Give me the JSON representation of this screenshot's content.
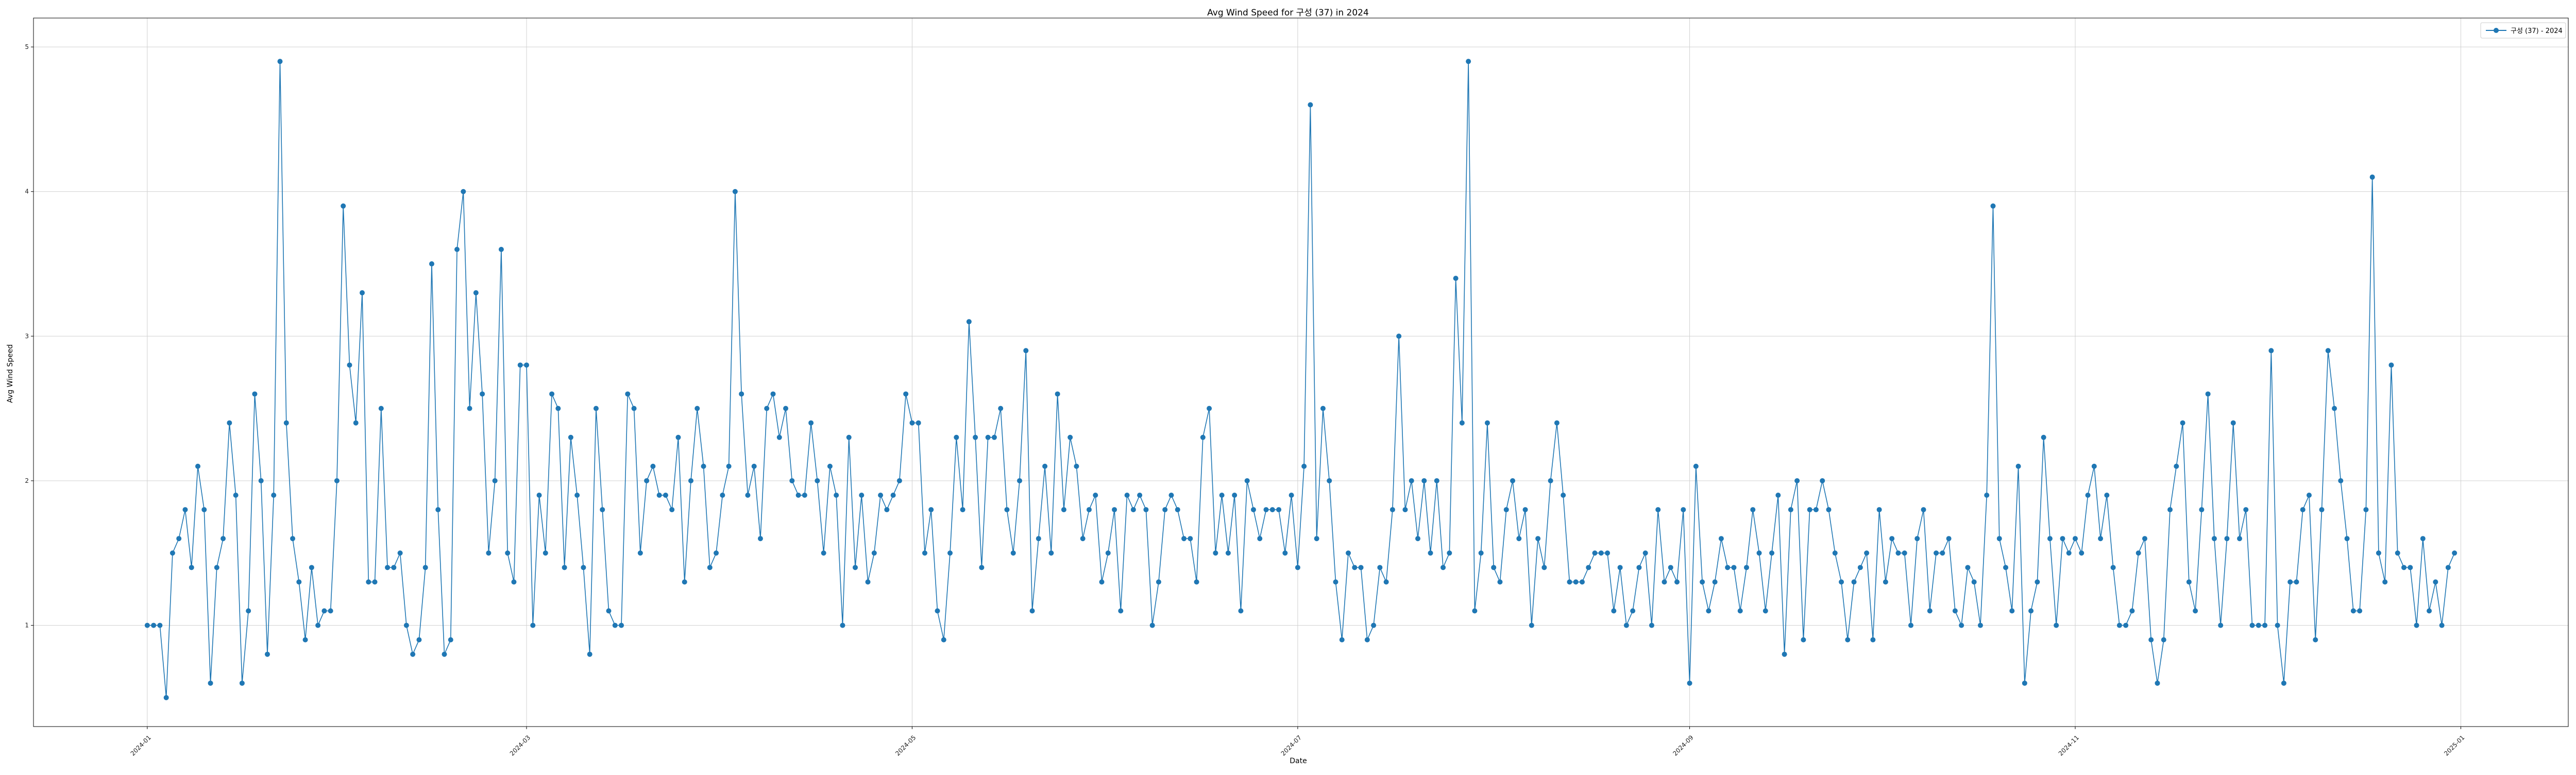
{
  "chart_data": {
    "type": "line",
    "title": "Avg Wind Speed for 구성 (37) in 2024",
    "xlabel": "Date",
    "ylabel": "Avg Wind Speed",
    "grid": true,
    "legend_position": "top-right",
    "x_tick_labels": [
      "2024-01",
      "2024-03",
      "2024-05",
      "2024-07",
      "2024-09",
      "2024-11",
      "2025-01"
    ],
    "x_tick_dates": [
      "2024-01-01",
      "2024-03-01",
      "2024-05-01",
      "2024-07-01",
      "2024-09-01",
      "2024-11-01",
      "2025-01-01"
    ],
    "y_ticks": [
      1,
      2,
      3,
      4,
      5
    ],
    "ylim": [
      0.3,
      5.2
    ],
    "xlim": [
      "2023-12-14",
      "2025-01-18"
    ],
    "line_color": "#1f77b4",
    "series": [
      {
        "name": "구성 (37) - 2024",
        "dates_start": "2024-01-01",
        "values": [
          1.0,
          1.0,
          1.0,
          0.5,
          1.5,
          1.6,
          1.8,
          1.4,
          2.1,
          1.8,
          0.6,
          1.4,
          1.6,
          2.4,
          1.9,
          0.6,
          1.1,
          2.6,
          2.0,
          0.8,
          1.9,
          4.9,
          2.4,
          1.6,
          1.3,
          0.9,
          1.4,
          1.0,
          1.1,
          1.1,
          2.0,
          3.9,
          2.8,
          2.4,
          3.3,
          1.3,
          1.3,
          2.5,
          1.4,
          1.4,
          1.5,
          1.0,
          0.8,
          0.9,
          1.4,
          3.5,
          1.8,
          0.8,
          0.9,
          3.6,
          4.0,
          2.5,
          3.3,
          2.6,
          1.5,
          2.0,
          3.6,
          1.5,
          1.3,
          2.8,
          2.8,
          1.0,
          1.9,
          1.5,
          2.6,
          2.5,
          1.4,
          2.3,
          1.9,
          1.4,
          0.8,
          2.5,
          1.8,
          1.1,
          1.0,
          1.0,
          2.6,
          2.5,
          1.5,
          2.0,
          2.1,
          1.9,
          1.9,
          1.8,
          2.3,
          1.3,
          2.0,
          2.5,
          2.1,
          1.4,
          1.5,
          1.9,
          2.1,
          4.0,
          2.6,
          1.9,
          2.1,
          1.6,
          2.5,
          2.6,
          2.3,
          2.5,
          2.0,
          1.9,
          1.9,
          2.4,
          2.0,
          1.5,
          2.1,
          1.9,
          1.0,
          2.3,
          1.4,
          1.9,
          1.3,
          1.5,
          1.9,
          1.8,
          1.9,
          2.0,
          2.6,
          2.4,
          2.4,
          1.5,
          1.8,
          1.1,
          0.9,
          1.5,
          2.3,
          1.8,
          3.1,
          2.3,
          1.4,
          2.3,
          2.3,
          2.5,
          1.8,
          1.5,
          2.0,
          2.9,
          1.1,
          1.6,
          2.1,
          1.5,
          2.6,
          1.8,
          2.3,
          2.1,
          1.6,
          1.8,
          1.9,
          1.3,
          1.5,
          1.8,
          1.1,
          1.9,
          1.8,
          1.9,
          1.8,
          1.0,
          1.3,
          1.8,
          1.9,
          1.8,
          1.6,
          1.6,
          1.3,
          2.3,
          2.5,
          1.5,
          1.9,
          1.5,
          1.9,
          1.1,
          2.0,
          1.8,
          1.6,
          1.8,
          1.8,
          1.8,
          1.5,
          1.9,
          1.4,
          2.1,
          4.6,
          1.6,
          2.5,
          2.0,
          1.3,
          0.9,
          1.5,
          1.4,
          1.4,
          0.9,
          1.0,
          1.4,
          1.3,
          1.8,
          3.0,
          1.8,
          2.0,
          1.6,
          2.0,
          1.5,
          2.0,
          1.4,
          1.5,
          3.4,
          2.4,
          4.9,
          1.1,
          1.5,
          2.4,
          1.4,
          1.3,
          1.8,
          2.0,
          1.6,
          1.8,
          1.0,
          1.6,
          1.4,
          2.0,
          2.4,
          1.9,
          1.3,
          1.3,
          1.3,
          1.4,
          1.5,
          1.5,
          1.5,
          1.1,
          1.4,
          1.0,
          1.1,
          1.4,
          1.5,
          1.0,
          1.8,
          1.3,
          1.4,
          1.3,
          1.8,
          0.6,
          2.1,
          1.3,
          1.1,
          1.3,
          1.6,
          1.4,
          1.4,
          1.1,
          1.4,
          1.8,
          1.5,
          1.1,
          1.5,
          1.9,
          0.8,
          1.8,
          2.0,
          0.9,
          1.8,
          1.8,
          2.0,
          1.8,
          1.5,
          1.3,
          0.9,
          1.3,
          1.4,
          1.5,
          0.9,
          1.8,
          1.3,
          1.6,
          1.5,
          1.5,
          1.0,
          1.6,
          1.8,
          1.1,
          1.5,
          1.5,
          1.6,
          1.1,
          1.0,
          1.4,
          1.3,
          1.0,
          1.9,
          3.9,
          1.6,
          1.4,
          1.1,
          2.1,
          0.6,
          1.1,
          1.3,
          2.3,
          1.6,
          1.0,
          1.6,
          1.5,
          1.6,
          1.5,
          1.9,
          2.1,
          1.6,
          1.9,
          1.4,
          1.0,
          1.0,
          1.1,
          1.5,
          1.6,
          0.9,
          0.6,
          0.9,
          1.8,
          2.1,
          2.4,
          1.3,
          1.1,
          1.8,
          2.6,
          1.6,
          1.0,
          1.6,
          2.4,
          1.6,
          1.8,
          1.0,
          1.0,
          1.0,
          2.9,
          1.0,
          0.6,
          1.3,
          1.3,
          1.8,
          1.9,
          0.9,
          1.8,
          2.9,
          2.5,
          2.0,
          1.6,
          1.1,
          1.1,
          1.8,
          4.1,
          1.5,
          1.3,
          2.8,
          1.5,
          1.4,
          1.4,
          1.0,
          1.6,
          1.1,
          1.3,
          1.0,
          1.4,
          1.5
        ]
      }
    ]
  }
}
